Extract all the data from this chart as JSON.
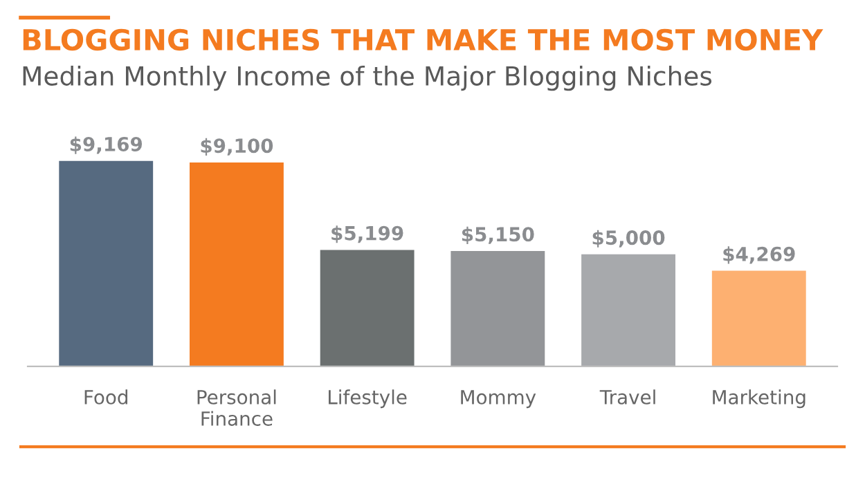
{
  "chart_data": {
    "type": "bar",
    "title": "BLOGGING NICHES THAT MAKE THE MOST MONEY",
    "subtitle": "Median Monthly Income of the Major Blogging Niches",
    "categories": [
      "Food",
      "Personal\nFinance",
      "Lifestyle",
      "Mommy",
      "Travel",
      "Marketing"
    ],
    "values": [
      9169,
      9100,
      5199,
      5150,
      5000,
      4269
    ],
    "value_labels": [
      "$9,169",
      "$9,100",
      "$5,199",
      "$5,150",
      "$5,000",
      "$4,269"
    ],
    "colors": [
      "#566a80",
      "#f47b20",
      "#6b7070",
      "#939598",
      "#a7a9ac",
      "#fdb071"
    ],
    "tick_labels": "x",
    "grid": false,
    "legend": false
  }
}
